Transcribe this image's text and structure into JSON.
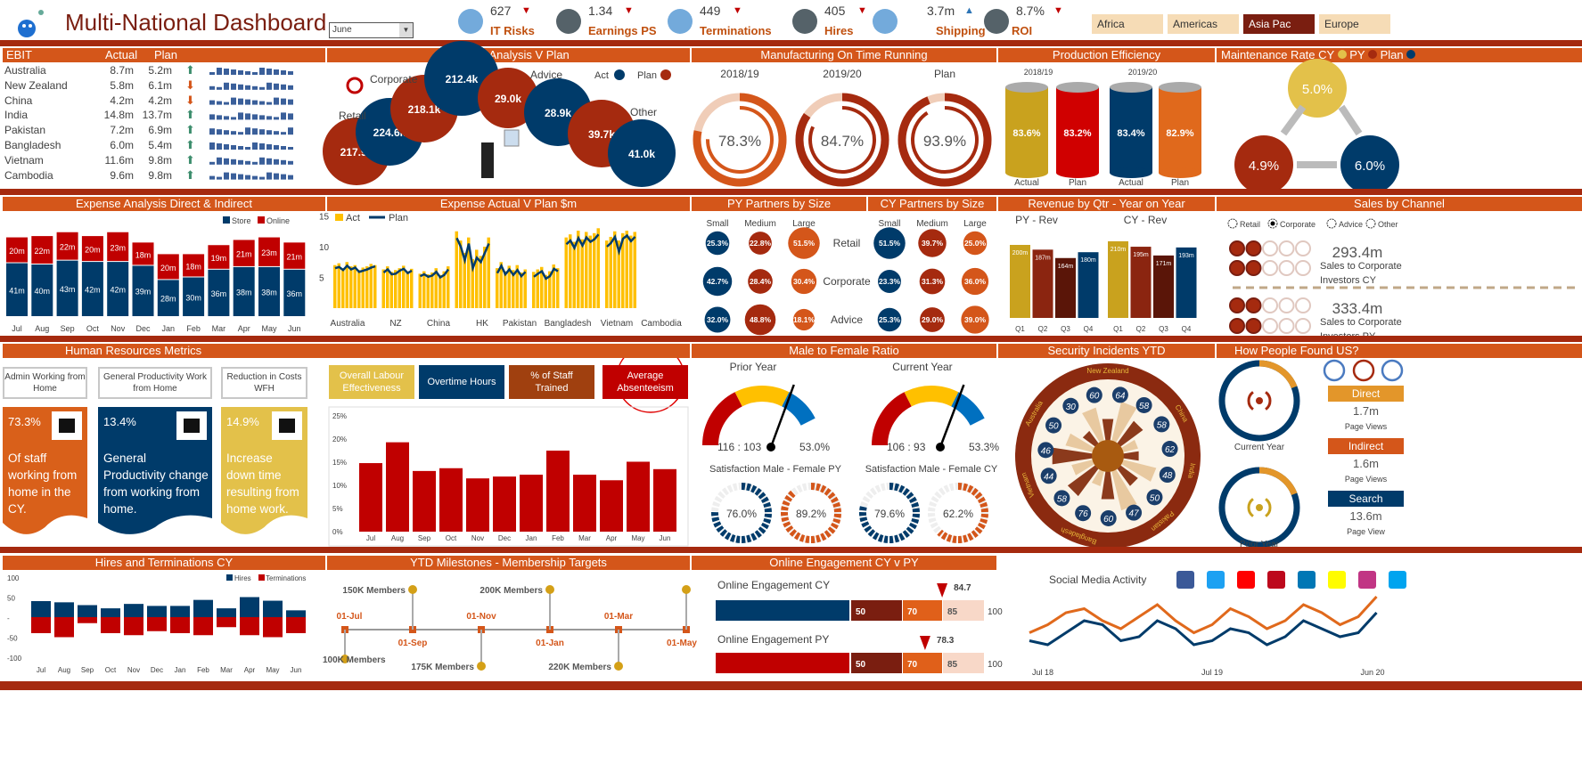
{
  "header": {
    "title": "Multi-National Dashboard",
    "period_select": "June",
    "kpis": [
      {
        "label": "IT Risks",
        "value": "627",
        "trend": "down",
        "icon": "umbrella-icon"
      },
      {
        "label": "Earnings PS",
        "value": "1.34",
        "trend": "down",
        "icon": "scales-icon"
      },
      {
        "label": "Terminations",
        "value": "449",
        "trend": "down",
        "icon": "people-icon"
      },
      {
        "label": "Hires",
        "value": "405",
        "trend": "down",
        "icon": "person-icon"
      },
      {
        "label": "Shipping",
        "value": "3.7m",
        "trend": "up",
        "icon": "truck-icon"
      },
      {
        "label": "ROI",
        "value": "8.7%",
        "trend": "down",
        "icon": "rocket-icon"
      }
    ],
    "regions": [
      {
        "label": "Africa",
        "selected": false
      },
      {
        "label": "Americas",
        "selected": false
      },
      {
        "label": "Asia Pac",
        "selected": true
      },
      {
        "label": "Europe",
        "selected": false
      }
    ]
  },
  "colors": {
    "navy": "#003B6A",
    "red": "#C00000",
    "darkred": "#A52A0F",
    "orange": "#D4561A",
    "gold": "#E3C14A",
    "yellow": "#FFC000"
  },
  "ebit": {
    "title": "EBIT",
    "col_actual": "Actual",
    "col_plan": "Plan",
    "rows": [
      {
        "country": "Australia",
        "actual": "8.7m",
        "plan": "5.2m",
        "trend": "up"
      },
      {
        "country": "New Zealand",
        "actual": "5.8m",
        "plan": "6.1m",
        "trend": "down"
      },
      {
        "country": "China",
        "actual": "4.2m",
        "plan": "4.2m",
        "trend": "down"
      },
      {
        "country": "India",
        "actual": "14.8m",
        "plan": "13.7m",
        "trend": "up"
      },
      {
        "country": "Pakistan",
        "actual": "7.2m",
        "plan": "6.9m",
        "trend": "up"
      },
      {
        "country": "Bangladesh",
        "actual": "6.0m",
        "plan": "5.4m",
        "trend": "up"
      },
      {
        "country": "Vietnam",
        "actual": "11.6m",
        "plan": "9.8m",
        "trend": "up"
      },
      {
        "country": "Cambodia",
        "actual": "9.6m",
        "plan": "9.8m",
        "trend": "up"
      }
    ]
  },
  "volume": {
    "title": "Volume Analysis V Plan",
    "legend_act": "Act",
    "legend_plan": "Plan",
    "groups": [
      {
        "label": "Retail",
        "act": "224.6k",
        "plan": "217.9k"
      },
      {
        "label": "Corporate",
        "act": "212.4k",
        "plan": "218.1k"
      },
      {
        "label": "Advice",
        "act": "28.9k",
        "plan": "29.0k"
      },
      {
        "label": "Other",
        "act": "41.0k",
        "plan": "39.7k"
      }
    ]
  },
  "manufacturing": {
    "title": "Manufacturing On Time Running",
    "items": [
      {
        "label": "2018/19",
        "value": "78.3%",
        "pct": 78.3
      },
      {
        "label": "2019/20",
        "value": "84.7%",
        "pct": 84.7
      },
      {
        "label": "Plan",
        "value": "93.9%",
        "pct": 93.9
      }
    ]
  },
  "production": {
    "title": "Production Efficiency",
    "years": [
      "2018/19",
      "2019/20"
    ],
    "items": [
      {
        "label": "Actual",
        "value": "83.6%"
      },
      {
        "label": "Plan",
        "value": "83.2%"
      },
      {
        "label": "Actual",
        "value": "83.4%"
      },
      {
        "label": "Plan",
        "value": "82.9%"
      }
    ]
  },
  "maintenance": {
    "title": "Maintenance Rate CY",
    "legend_py": "PY",
    "legend_plan": "Plan",
    "cy": "5.0%",
    "py": "4.9%",
    "plan": "6.0%"
  },
  "chart_data": [
    {
      "id": "expense_analysis",
      "type": "bar",
      "stacked": true,
      "title": "Expense Analysis Direct & Indirect",
      "categories": [
        "Jul",
        "Aug",
        "Sep",
        "Oct",
        "Nov",
        "Dec",
        "Jan",
        "Feb",
        "Mar",
        "Apr",
        "May",
        "Jun"
      ],
      "legend": "top-right",
      "series": [
        {
          "name": "Store",
          "values": [
            41,
            40,
            43,
            42,
            42,
            39,
            28,
            30,
            36,
            38,
            38,
            36
          ]
        },
        {
          "name": "Online",
          "values": [
            20,
            22,
            22,
            20,
            23,
            18,
            20,
            18,
            19,
            21,
            23,
            21
          ]
        }
      ],
      "value_suffix": "m"
    },
    {
      "id": "expense_actual_plan",
      "type": "bar",
      "title": "Expense Actual V Plan $m",
      "categories": [
        "Australia",
        "NZ",
        "China",
        "HK",
        "Pakistan",
        "Bangladesh",
        "Vietnam",
        "Cambodia"
      ],
      "yticks": [
        5,
        10,
        15
      ],
      "ylim": [
        0,
        16
      ],
      "legend": "top-left",
      "series": [
        {
          "name": "Act",
          "values": [
            [
              7,
              7.3,
              6.5,
              7.5,
              6.8,
              7,
              6.2,
              6.6,
              6.8,
              7.2,
              7
            ],
            [
              6.3,
              6.8,
              5.9,
              6.2,
              6.5,
              6.9,
              6,
              6.4
            ],
            [
              5.6,
              6,
              5.5,
              5.8,
              6.5,
              5.4,
              6,
              6.8
            ],
            [
              12.5,
              11,
              9,
              11.5,
              8,
              9.5,
              8.5,
              10,
              11.5
            ],
            [
              6.5,
              7.5,
              6,
              6.9,
              6.2,
              7,
              5.8,
              6.3
            ],
            [
              5.9,
              6.3,
              6.7,
              5.4,
              6,
              7.1,
              6.5
            ],
            [
              11.5,
              12,
              10.8,
              12.6,
              11.2,
              12.4,
              11.8,
              12.2,
              13
            ],
            [
              11,
              11.6,
              12.5,
              11,
              12.2,
              12.6,
              11.8,
              12.4
            ]
          ]
        },
        {
          "name": "Plan",
          "values": [
            [
              6.5,
              6.7,
              6.2,
              6.9,
              6.3,
              6.6,
              5.9,
              6.1,
              6.3,
              6.6,
              6.8
            ],
            [
              5.8,
              6.3,
              5.5,
              5.6,
              6.1,
              6.4,
              5.7,
              6.1
            ],
            [
              5.2,
              5.5,
              5.1,
              5.3,
              5.9,
              5,
              5.4,
              6.3
            ],
            [
              11.4,
              10,
              7.8,
              10.5,
              6.5,
              8.2,
              7.5,
              9,
              10.5
            ],
            [
              5.7,
              6.9,
              5.5,
              6.3,
              5.4,
              6.2,
              5.2,
              5.9
            ],
            [
              5.1,
              5.6,
              6,
              4.8,
              5.2,
              6.4,
              6
            ],
            [
              10.4,
              11,
              9.8,
              11.4,
              10.2,
              11.5,
              10.8,
              11.2,
              12
            ],
            [
              10,
              10.6,
              11.6,
              9.2,
              11.3,
              11.8,
              10.9,
              11.6
            ]
          ]
        }
      ]
    },
    {
      "id": "py_partners",
      "type": "bubble",
      "title": "PY Partners by Size",
      "columns": [
        "Small",
        "Medium",
        "Large"
      ],
      "rows": [
        "Retail",
        "Corporate",
        "Advice"
      ],
      "values": [
        [
          25.3,
          22.8,
          51.5
        ],
        [
          42.7,
          28.4,
          30.4
        ],
        [
          32.0,
          48.8,
          18.1
        ]
      ]
    },
    {
      "id": "cy_partners",
      "type": "bubble",
      "title": "CY Partners by Size",
      "columns": [
        "Small",
        "Medium",
        "Large"
      ],
      "rows": [
        "Retail",
        "Corporate",
        "Advice"
      ],
      "values": [
        [
          51.5,
          39.7,
          25.0
        ],
        [
          23.3,
          31.3,
          36.0
        ],
        [
          25.3,
          29.0,
          39.0
        ]
      ]
    },
    {
      "id": "revenue_qtr",
      "type": "bar",
      "title": "Revenue by Qtr - Year on Year",
      "groups": [
        {
          "name": "PY - Rev",
          "categories": [
            "Q1",
            "Q2",
            "Q3",
            "Q4"
          ],
          "values": [
            200,
            187,
            164,
            180
          ]
        },
        {
          "name": "CY - Rev",
          "categories": [
            "Q1",
            "Q2",
            "Q3",
            "Q4"
          ],
          "values": [
            210,
            195,
            171,
            193
          ]
        }
      ],
      "value_suffix": "m"
    },
    {
      "id": "absenteeism",
      "type": "bar",
      "categories": [
        "Jul",
        "Aug",
        "Sep",
        "Oct",
        "Nov",
        "Dec",
        "Jan",
        "Feb",
        "Mar",
        "Apr",
        "May",
        "Jun"
      ],
      "values": [
        14.8,
        19.3,
        13.1,
        13.7,
        11.5,
        11.9,
        12.3,
        17.5,
        12.3,
        11.1,
        15.1,
        13.5
      ],
      "yticks": [
        "0%",
        "5%",
        "10%",
        "15%",
        "20%",
        "25%"
      ],
      "ylim": [
        0,
        25
      ]
    },
    {
      "id": "hires_terminations",
      "type": "bar",
      "title": "Hires and Terminations CY",
      "categories": [
        "Jul",
        "Aug",
        "Sep",
        "Oct",
        "Nov",
        "Dec",
        "Jan",
        "Feb",
        "Mar",
        "Apr",
        "May",
        "Jun"
      ],
      "legend": "top-right",
      "yticks": [
        "100",
        "50",
        "-",
        "-50",
        "-100"
      ],
      "ylim": [
        -100,
        100
      ],
      "series": [
        {
          "name": "Hires",
          "values": [
            40,
            37,
            30,
            22,
            33,
            28,
            28,
            43,
            22,
            50,
            41,
            17
          ]
        },
        {
          "name": "Terminations",
          "values": [
            -40,
            -50,
            -15,
            -40,
            -45,
            -35,
            -40,
            -45,
            -25,
            -45,
            -50,
            -40
          ]
        }
      ]
    },
    {
      "id": "social_media",
      "type": "line",
      "title": "Social Media Activity",
      "xticks": [
        "Jul 18",
        "Jul 19",
        "Jun 20"
      ],
      "series": [
        {
          "values": [
            55,
            65,
            80,
            85,
            70,
            60,
            75,
            90,
            70,
            55,
            65,
            85,
            75,
            60,
            70,
            90,
            80,
            65,
            75,
            100
          ]
        },
        {
          "values": [
            45,
            40,
            55,
            70,
            65,
            45,
            50,
            70,
            60,
            40,
            45,
            60,
            55,
            40,
            50,
            70,
            60,
            50,
            55,
            80
          ]
        }
      ]
    }
  ],
  "sales_channel": {
    "title": "Sales by Channel",
    "options": [
      {
        "label": "Retail",
        "selected": false
      },
      {
        "label": "Corporate",
        "selected": true
      },
      {
        "label": "Advice",
        "selected": false
      },
      {
        "label": "Other",
        "selected": false
      }
    ],
    "cy": {
      "value": "293.4m",
      "label1": "Sales to Corporate",
      "label2": "Investors CY",
      "filled": 2
    },
    "py": {
      "value": "333.4m",
      "label1": "Sales to Corporate",
      "label2": "Investors PY",
      "filled": 2.3
    }
  },
  "hr": {
    "title": "Human Resources Metrics",
    "cards": [
      {
        "heading": "Admin Working from Home",
        "value": "73.3%",
        "text": "Of staff working from home in the CY.",
        "icon": "remote-worker-icon"
      },
      {
        "heading": "General Productivity Work from Home",
        "value": "13.4%",
        "text": "General Productivity change from working from home.",
        "icon": "growth-chart-icon"
      },
      {
        "heading": "Reduction in Costs WFH",
        "value": "14.9%",
        "text": "Increase down time resulting from home work.",
        "icon": "relaxing-person-icon"
      }
    ],
    "buttons": [
      {
        "label": "Overall Labour Effectiveness"
      },
      {
        "label": "Overtime Hours"
      },
      {
        "label": "% of Staff Trained"
      },
      {
        "label": "Average Absenteeism",
        "selected": true
      }
    ]
  },
  "gender": {
    "title": "Male to Female Ratio",
    "py": {
      "label": "Prior Year",
      "ratio": "116 : 103",
      "pct": "53.0%",
      "value": 53.0
    },
    "cy": {
      "label": "Current  Year",
      "ratio": "106 : 93",
      "pct": "53.3%",
      "value": 53.3
    },
    "sat_py": {
      "label": "Satisfaction Male - Female PY",
      "male": "76.0%",
      "female": "89.2%",
      "male_v": 76.0,
      "female_v": 89.2
    },
    "sat_cy": {
      "label": "Satisfaction Male - Female CY",
      "male": "79.6%",
      "female": "62.2%",
      "male_v": 79.6,
      "female_v": 62.2
    }
  },
  "security": {
    "title": "Security Incidents YTD",
    "countries": [
      "Australia",
      "New Zealand",
      "China",
      "India",
      "Pakistan",
      "Bangladesh",
      "Vietnam"
    ],
    "values": [
      "64",
      "58",
      "58",
      "62",
      "48",
      "50",
      "47",
      "60",
      "76",
      "58",
      "44",
      "46",
      "50",
      "30",
      "60"
    ]
  },
  "found": {
    "title": "How People Found US?",
    "cy_label": "Current Year",
    "py_label": "Prior Year",
    "channels": [
      {
        "label": "Direct",
        "value": "1.7m",
        "unit": "Page Views"
      },
      {
        "label": "Indirect",
        "value": "1.6m",
        "unit": "Page Views"
      },
      {
        "label": "Search",
        "value": "13.6m",
        "unit": "Page View"
      }
    ]
  },
  "milestones": {
    "title": "YTD Milestones - Membership Targets",
    "dates": [
      "01-Jul",
      "01-Sep",
      "01-Nov",
      "01-Jan",
      "01-Mar",
      "01-May"
    ],
    "targets": [
      "100K Members",
      "150K Members",
      "175K Members",
      "200K Members",
      "220K Members"
    ]
  },
  "engagement": {
    "title": "Online Engagement CY v PY",
    "cy": {
      "label": "Online Engagement CY",
      "value": "84.7",
      "v": 84.7,
      "bands": [
        "50",
        "70",
        "85",
        "100"
      ]
    },
    "py": {
      "label": "Online Engagement PY",
      "value": "78.3",
      "v": 78.3,
      "bands": [
        "50",
        "70",
        "85",
        "100"
      ]
    }
  },
  "social": {
    "title": "Social Media Activity",
    "icons": [
      "facebook-icon",
      "twitter-icon",
      "youtube-icon",
      "pinterest-icon",
      "linkedin-icon",
      "snapchat-icon",
      "instagram-icon",
      "windows-icon"
    ]
  }
}
